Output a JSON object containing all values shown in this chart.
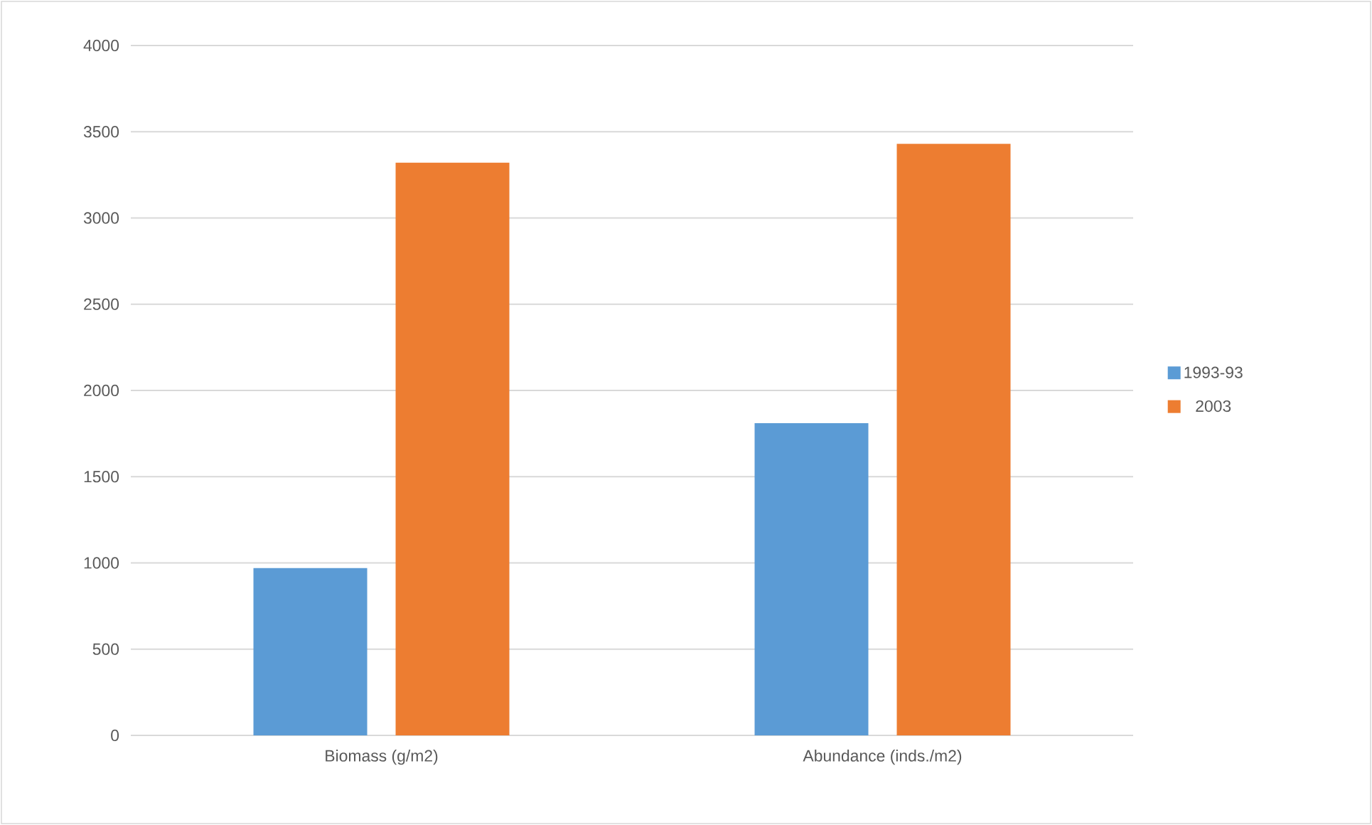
{
  "chart_data": {
    "type": "bar",
    "categories": [
      "Biomass (g/m2)",
      "Abundance (inds./m2)"
    ],
    "series": [
      {
        "name": "1993-93",
        "color": "#5b9bd5",
        "values": [
          970,
          1810
        ]
      },
      {
        "name": "2003",
        "color": "#ed7d31",
        "values": [
          3320,
          3430
        ]
      }
    ],
    "ylim": [
      0,
      4000
    ],
    "yticks": [
      0,
      500,
      1000,
      1500,
      2000,
      2500,
      3000,
      3500,
      4000
    ],
    "grid": "y",
    "legend": "right"
  }
}
